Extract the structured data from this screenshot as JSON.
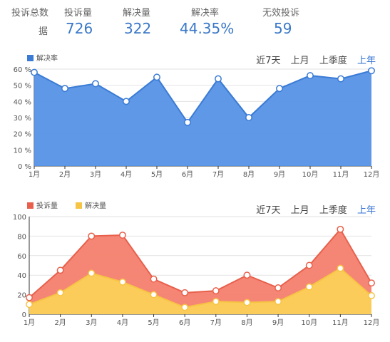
{
  "summary": {
    "label_line1": "投诉总数",
    "label_line2": "据",
    "items": [
      {
        "label": "投诉量",
        "value": "726"
      },
      {
        "label": "解决量",
        "value": "322"
      },
      {
        "label": "解决率",
        "value": "44.35%"
      },
      {
        "label": "无效投诉",
        "value": "59"
      }
    ]
  },
  "range_tabs": {
    "options": [
      "近7天",
      "上月",
      "上季度",
      "上年"
    ],
    "active_index": 3
  },
  "colors": {
    "rate_line": "#3a7bd5",
    "rate_fill": "#5592e6",
    "complaint_line": "#e8604c",
    "complaint_fill": "#f47f6e",
    "resolved_line": "#f6c444",
    "resolved_fill": "#fcd05a",
    "grid": "#e2e2e2",
    "axis_text": "#555555"
  },
  "chart_data": [
    {
      "type": "area",
      "categories": [
        "1月",
        "2月",
        "3月",
        "4月",
        "5月",
        "6月",
        "7月",
        "8月",
        "9月",
        "10月",
        "11月",
        "12月"
      ],
      "series": [
        {
          "name": "解决率",
          "values": [
            58,
            48,
            51,
            40,
            55,
            27,
            54,
            30,
            48,
            56,
            54,
            59
          ]
        }
      ],
      "ylim": [
        0,
        60
      ],
      "yticks": [
        0,
        10,
        20,
        30,
        40,
        50,
        60
      ],
      "ytick_labels": [
        "0 %",
        "10 %",
        "20 %",
        "30 %",
        "40 %",
        "50 %",
        "60 %"
      ],
      "grid": true,
      "legend_position": "top-left"
    },
    {
      "type": "area",
      "categories": [
        "1月",
        "2月",
        "3月",
        "4月",
        "5月",
        "6月",
        "7月",
        "8月",
        "9月",
        "10月",
        "11月",
        "12月"
      ],
      "series": [
        {
          "name": "投诉量",
          "values": [
            17,
            45,
            80,
            81,
            36,
            22,
            24,
            40,
            27,
            50,
            87,
            32
          ]
        },
        {
          "name": "解决量",
          "values": [
            10,
            22,
            42,
            33,
            20,
            7,
            13,
            12,
            13,
            28,
            47,
            19
          ]
        }
      ],
      "ylim": [
        0,
        100
      ],
      "yticks": [
        0,
        20,
        40,
        60,
        80,
        100
      ],
      "ytick_labels": [
        "0",
        "20",
        "40",
        "60",
        "80",
        "100"
      ],
      "grid": true,
      "legend_position": "top-left"
    }
  ]
}
